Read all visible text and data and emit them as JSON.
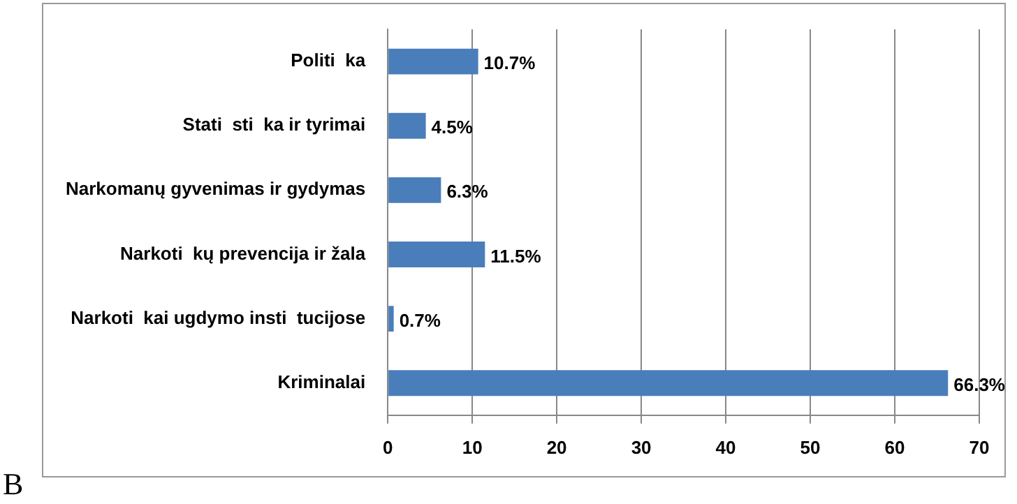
{
  "chart_data": {
    "type": "bar",
    "orientation": "horizontal",
    "categories": [
      "Politi  ka",
      "Stati  sti  ka ir tyrimai",
      "Narkomanų gyvenimas ir gydymas",
      "Narkoti  kų prevencija ir žala",
      "Narkoti  kai ugdymo insti  tucijose",
      "Kriminalai"
    ],
    "values": [
      10.7,
      4.5,
      6.3,
      11.5,
      0.7,
      66.3
    ],
    "value_labels": [
      "10.7%",
      "4.5%",
      "6.3%",
      "11.5%",
      "0.7%",
      "66.3%"
    ],
    "color": "#4a7ebb",
    "xlim": [
      0,
      70
    ],
    "xticks": [
      0,
      10,
      20,
      30,
      40,
      50,
      60,
      70
    ],
    "grid": "x",
    "annotations": [
      "B"
    ]
  }
}
